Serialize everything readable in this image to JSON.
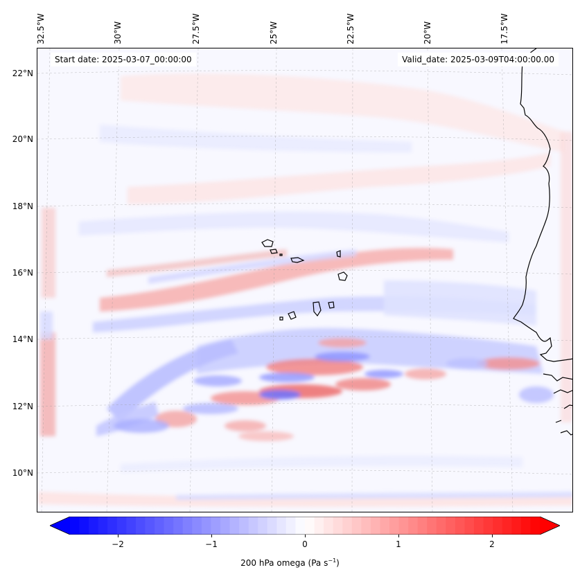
{
  "map": {
    "start_date": "Start date: 2025-03-07_00:00:00",
    "valid_date": "Valid_date: 2025-03-09T04:00:00.00",
    "lon_labels": [
      "32.5°W",
      "30°W",
      "27.5°W",
      "25°W",
      "22.5°W",
      "20°W",
      "17.5°W"
    ],
    "lat_labels": [
      "22°N",
      "20°N",
      "18°N",
      "16°N",
      "14°N",
      "12°N",
      "10°N"
    ],
    "variable": "200 hPa omega",
    "units_base": "Pa s",
    "units_exp": "−1",
    "colormap": "bwr",
    "ocean_color": "#f8f8ff",
    "coastline_color": "#000000"
  },
  "colorbar": {
    "ticks": [
      "−2",
      "−1",
      "0",
      "1",
      "2"
    ],
    "tick_values": [
      -2,
      -1,
      0,
      1,
      2
    ],
    "range": [
      -2.5,
      2.5
    ],
    "levels": 50,
    "extend": "both",
    "min_color": "#0000ff",
    "max_color": "#ff0000"
  }
}
